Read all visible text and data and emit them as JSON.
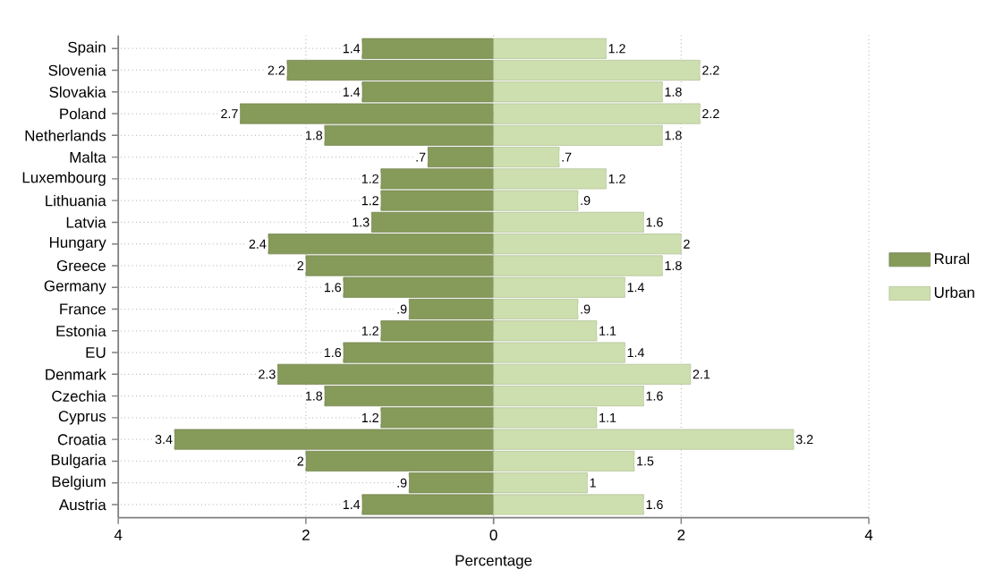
{
  "chart_data": [
    {
      "type": "bar",
      "orientation": "horizontal",
      "xlabel": "Percentage",
      "categories": [
        "Spain",
        "Slovenia",
        "Slovakia",
        "Poland",
        "Netherlands",
        "Malta",
        "Luxembourg",
        "Lithuania",
        "Latvia",
        "Hungary",
        "Greece",
        "Germany",
        "France",
        "Estonia",
        "EU",
        "Denmark",
        "Czechia",
        "Cyprus",
        "Croatia",
        "Bulgaria",
        "Belgium",
        "Austria"
      ],
      "series": [
        {
          "name": "Rural",
          "color": "#869a5a",
          "values": [
            1.4,
            2.2,
            1.4,
            2.7,
            1.8,
            0.7,
            1.2,
            1.2,
            1.3,
            2.4,
            2,
            1.6,
            0.9,
            1.2,
            1.6,
            2.3,
            1.8,
            1.2,
            3.4,
            2,
            0.9,
            1.4
          ],
          "value_labels": [
            "1.4",
            "2.2",
            "1.4",
            "2.7",
            "1.8",
            ".7",
            "1.2",
            "1.2",
            "1.3",
            "2.4",
            "2",
            "1.6",
            ".9",
            "1.2",
            "1.6",
            "2.3",
            "1.8",
            "1.2",
            "3.4",
            "2",
            ".9",
            "1.4"
          ]
        }
      ],
      "xlim": [
        4,
        0
      ],
      "xticks": [
        4,
        2,
        {
          "value": 0,
          "label": null
        }
      ],
      "grid": true,
      "legend": "right"
    },
    {
      "type": "bar",
      "orientation": "horizontal",
      "categories": [
        null,
        null,
        null,
        null,
        null,
        null,
        null,
        null,
        null,
        null,
        null,
        null,
        null,
        null,
        null,
        null,
        null,
        null,
        null,
        null,
        null,
        null
      ],
      "series": [
        {
          "name": "Urban",
          "color": "#cddfae",
          "values": [
            1.2,
            2.2,
            1.8,
            2.2,
            1.8,
            0.7,
            1.2,
            0.9,
            1.6,
            2,
            1.8,
            1.4,
            0.9,
            1.1,
            1.4,
            2.1,
            1.6,
            1.1,
            3.2,
            1.5,
            1,
            1.6
          ],
          "value_labels": [
            "1.2",
            "2.2",
            "1.8",
            "2.2",
            "1.8",
            ".7",
            "1.2",
            ".9",
            "1.6",
            "2",
            "1.8",
            "1.4",
            ".9",
            "1.1",
            "1.4",
            "2.1",
            "1.6",
            "1.1",
            "3.2",
            "1.5",
            "1",
            "1.6"
          ]
        }
      ],
      "xlim": [
        0,
        4
      ],
      "xticks": [
        0,
        2,
        4
      ],
      "grid": true,
      "legend": "right",
      "tick_labels": "x"
    }
  ]
}
